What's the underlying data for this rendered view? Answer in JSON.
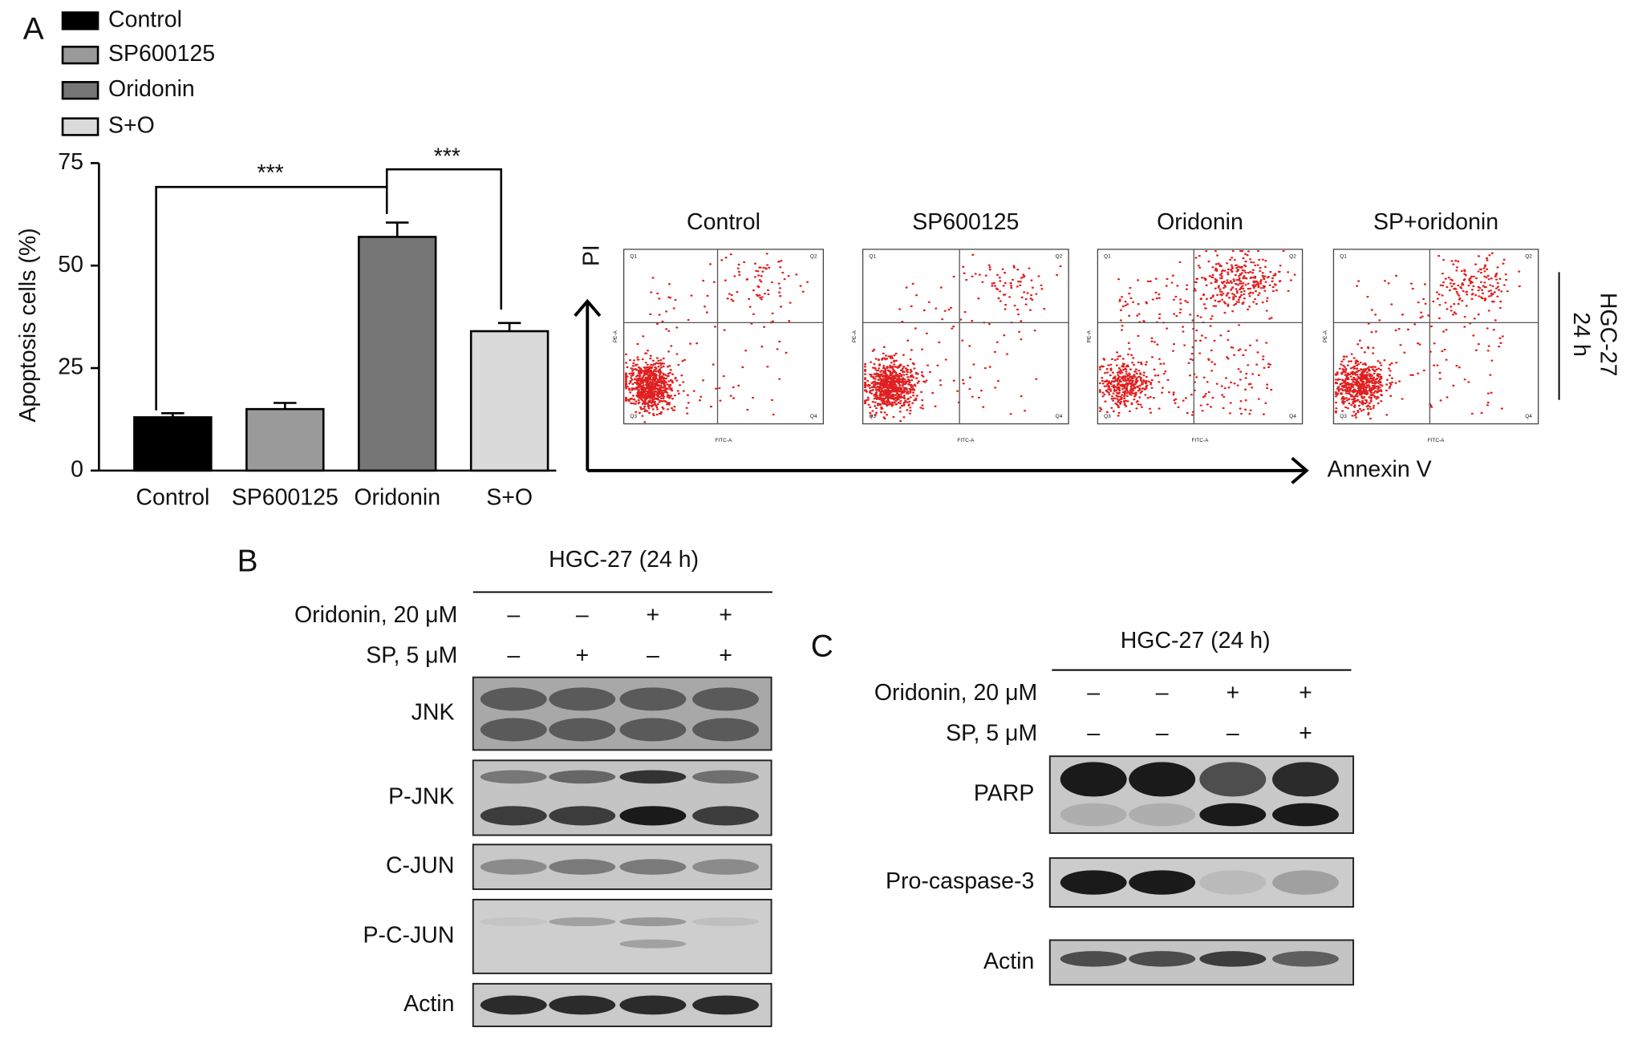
{
  "panel_labels": [
    "A",
    "B",
    "C"
  ],
  "chart_data": {
    "type": "bar",
    "categories": [
      "Control",
      "SP600125",
      "Oridonin",
      "S+O"
    ],
    "values": [
      13,
      15,
      57,
      34
    ],
    "errors": [
      1,
      1.5,
      3.5,
      2
    ],
    "colors": [
      "#000000",
      "#9a9a9a",
      "#767676",
      "#dadada"
    ],
    "ylabel": "Apoptosis cells (%)",
    "ylim": [
      0,
      75
    ],
    "yticks": [
      0,
      25,
      50,
      75
    ],
    "annotations": [
      "***",
      "***"
    ]
  },
  "flow": {
    "titles": [
      "Control",
      "SP600125",
      "Oridonin",
      "SP+oridonin"
    ],
    "y_axis": "PI",
    "x_axis": "Annexin V",
    "cell_line": "HGC-27",
    "time": "24 h",
    "quadrants": [
      "Q1",
      "Q2",
      "Q3",
      "Q4"
    ],
    "x_param": "FITC-A",
    "y_param": "PE-A"
  },
  "blot_b": {
    "title": "HGC-27 (24 h)",
    "conditions": [
      {
        "label": "Oridonin, 20 μM",
        "signs": [
          "–",
          "–",
          "+",
          "+"
        ]
      },
      {
        "label": "SP, 5 μM",
        "signs": [
          "–",
          "+",
          "–",
          "+"
        ]
      }
    ],
    "proteins": [
      "JNK",
      "P-JNK",
      "C-JUN",
      "P-C-JUN",
      "Actin"
    ]
  },
  "blot_c": {
    "title": "HGC-27 (24 h)",
    "conditions": [
      {
        "label": "Oridonin, 20 μM",
        "signs": [
          "–",
          "–",
          "+",
          "+"
        ]
      },
      {
        "label": "SP, 5 μM",
        "signs": [
          "–",
          "–",
          "–",
          "+"
        ]
      }
    ],
    "proteins": [
      "PARP",
      "Pro-caspase-3",
      "Actin"
    ]
  }
}
